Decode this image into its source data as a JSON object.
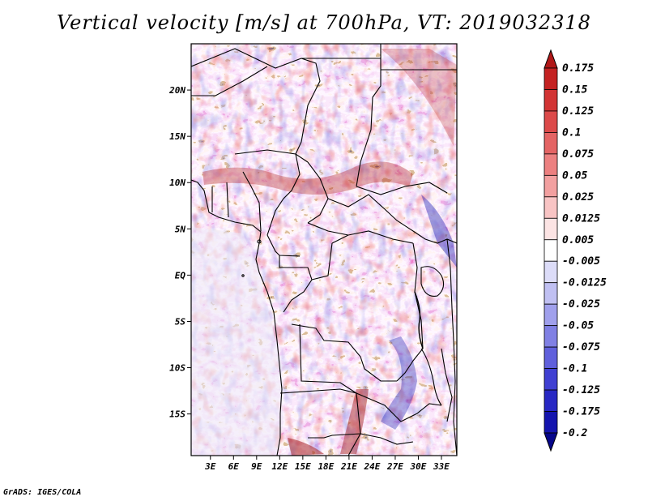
{
  "title": "Vertical velocity [m/s] at 700hPa, VT: 2019032318",
  "footer": "GrADS: IGES/COLA",
  "map": {
    "lat_labels": [
      "20N",
      "15N",
      "10N",
      "5N",
      "EQ",
      "5S",
      "10S",
      "15S"
    ],
    "lat_values": [
      20,
      15,
      10,
      5,
      0,
      -5,
      -10,
      -15
    ],
    "lon_labels": [
      "3E",
      "6E",
      "9E",
      "12E",
      "15E",
      "18E",
      "21E",
      "24E",
      "27E",
      "30E",
      "33E"
    ],
    "lon_values": [
      3,
      6,
      9,
      12,
      15,
      18,
      21,
      24,
      27,
      30,
      33
    ],
    "lon_range": [
      0.5,
      35
    ],
    "lat_range": [
      -19.5,
      25
    ]
  },
  "colorbar": {
    "labels": [
      "0.175",
      "0.15",
      "0.125",
      "0.1",
      "0.075",
      "0.05",
      "0.025",
      "0.0125",
      "0.005",
      "-0.005",
      "-0.0125",
      "-0.025",
      "-0.05",
      "-0.075",
      "-0.1",
      "-0.125",
      "-0.175",
      "-0.2"
    ],
    "colors": [
      "#b01818",
      "#c42222",
      "#d23434",
      "#dc4a4a",
      "#e46464",
      "#ec8080",
      "#f2a0a0",
      "#f8c4c4",
      "#fce4e4",
      "#ffffff",
      "#dcdcf8",
      "#c0c0f2",
      "#a0a0ec",
      "#8080e4",
      "#6060dc",
      "#4040d2",
      "#2828c4",
      "#1414ae",
      "#06068a"
    ]
  },
  "colors": {
    "positive": "#c02020",
    "negative": "#2020c0",
    "border": "#000000"
  }
}
